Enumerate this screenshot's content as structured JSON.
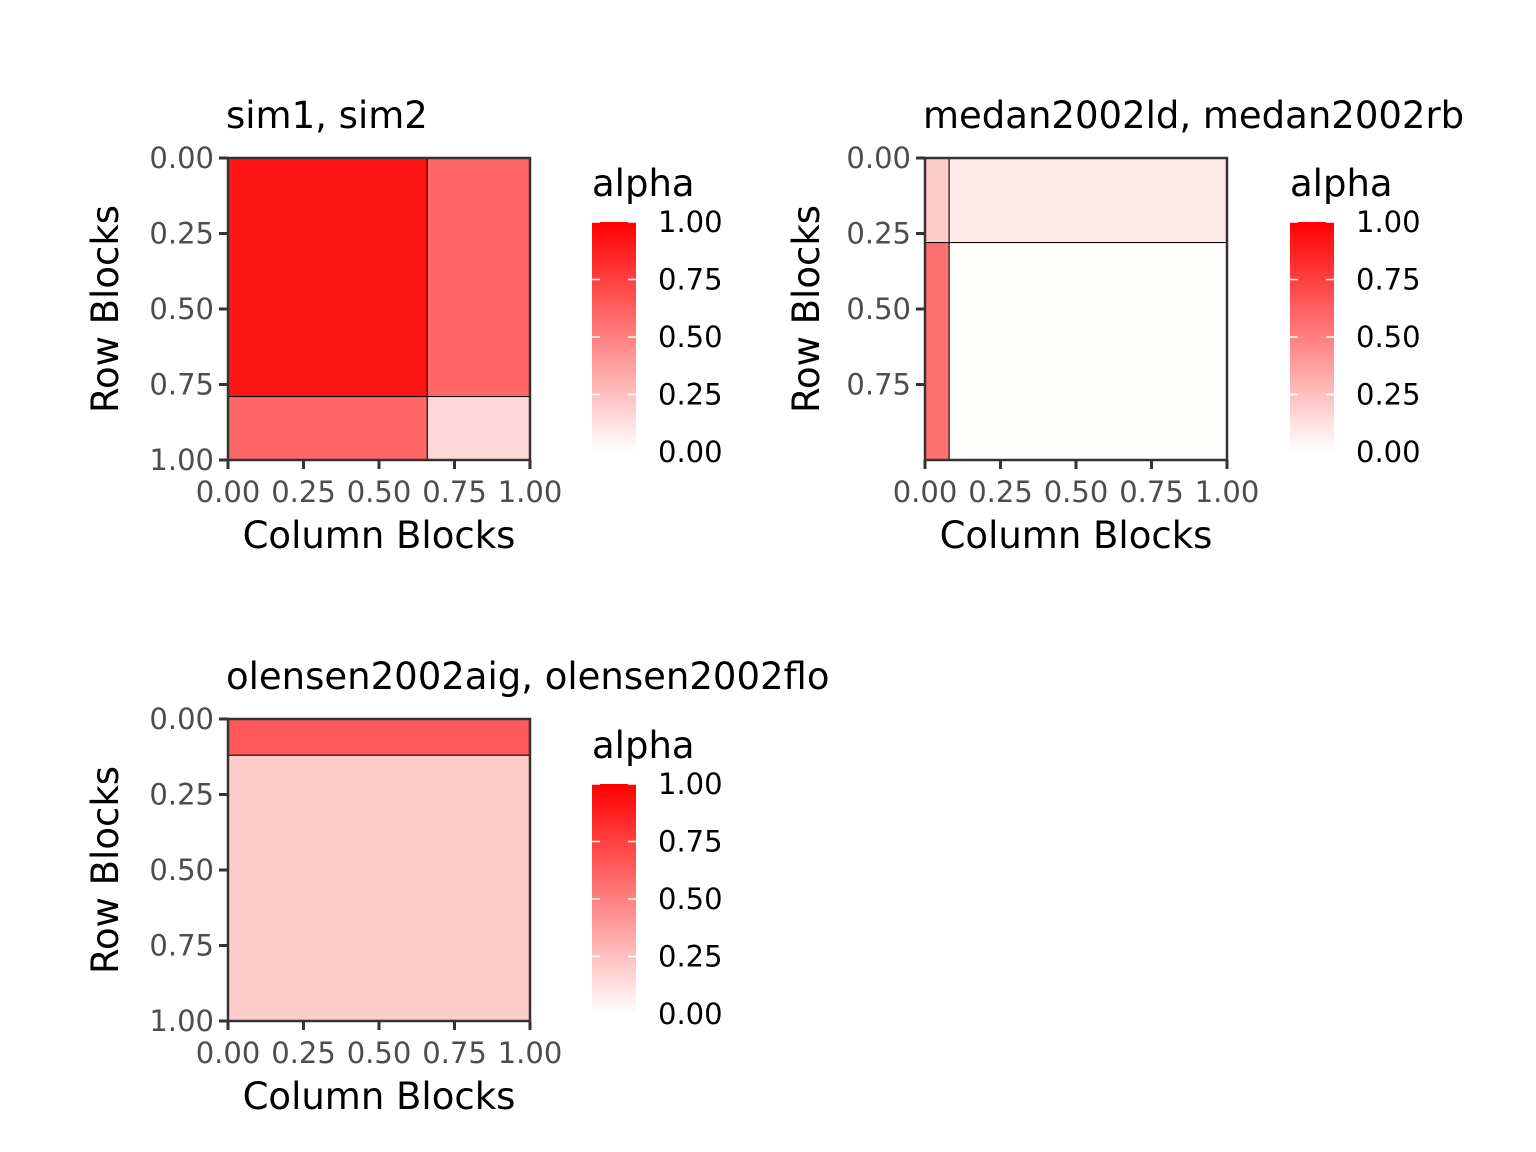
{
  "chart_data": [
    {
      "type": "heatmap",
      "title": "sim1, sim2",
      "xlabel": "Column Blocks",
      "ylabel": "Row Blocks",
      "xlim": [
        0,
        1
      ],
      "ylim": [
        0,
        1
      ],
      "y_reversed": true,
      "x_ticks": [
        "0.00",
        "0.25",
        "0.50",
        "0.75",
        "1.00"
      ],
      "y_ticks": [
        "0.00",
        "0.25",
        "0.50",
        "0.75",
        "1.00"
      ],
      "col_breaks": [
        0,
        0.66,
        1
      ],
      "row_breaks": [
        0,
        0.79,
        1
      ],
      "alpha": [
        [
          0.92,
          0.6
        ],
        [
          0.6,
          0.15
        ]
      ],
      "legend": {
        "title": "alpha",
        "ticks": [
          "1.00",
          "0.75",
          "0.50",
          "0.25",
          "0.00"
        ],
        "low_color": "#ffffff",
        "high_color": "#ff0000"
      }
    },
    {
      "type": "heatmap",
      "title": "medan2002ld, medan2002rb",
      "xlabel": "Column Blocks",
      "ylabel": "Row Blocks",
      "xlim": [
        0,
        1
      ],
      "ylim": [
        0,
        1
      ],
      "y_reversed": true,
      "x_ticks": [
        "0.00",
        "0.25",
        "0.50",
        "0.75",
        "1.00"
      ],
      "y_ticks": [
        "0.00",
        "0.25",
        "0.50",
        "0.75"
      ],
      "col_breaks": [
        0,
        0.08,
        1
      ],
      "row_breaks": [
        0,
        0.28,
        1
      ],
      "alpha": [
        [
          0.2,
          0.09
        ],
        [
          0.56,
          0.01
        ]
      ],
      "legend": {
        "title": "alpha",
        "ticks": [
          "1.00",
          "0.75",
          "0.50",
          "0.25",
          "0.00"
        ],
        "low_color": "#ffffff",
        "high_color": "#ff0000"
      }
    },
    {
      "type": "heatmap",
      "title": "olensen2002aig, olensen2002flo",
      "xlabel": "Column Blocks",
      "ylabel": "Row Blocks",
      "xlim": [
        0,
        1
      ],
      "ylim": [
        0,
        1
      ],
      "y_reversed": true,
      "x_ticks": [
        "0.00",
        "0.25",
        "0.50",
        "0.75",
        "1.00"
      ],
      "y_ticks": [
        "0.00",
        "0.25",
        "0.50",
        "0.75",
        "1.00"
      ],
      "col_breaks": [
        0,
        1
      ],
      "row_breaks": [
        0,
        0.12,
        1
      ],
      "alpha": [
        [
          0.65
        ],
        [
          0.2
        ]
      ],
      "legend": {
        "title": "alpha",
        "ticks": [
          "1.00",
          "0.75",
          "0.50",
          "0.25",
          "0.00"
        ],
        "low_color": "#ffffff",
        "high_color": "#ff0000"
      }
    }
  ]
}
